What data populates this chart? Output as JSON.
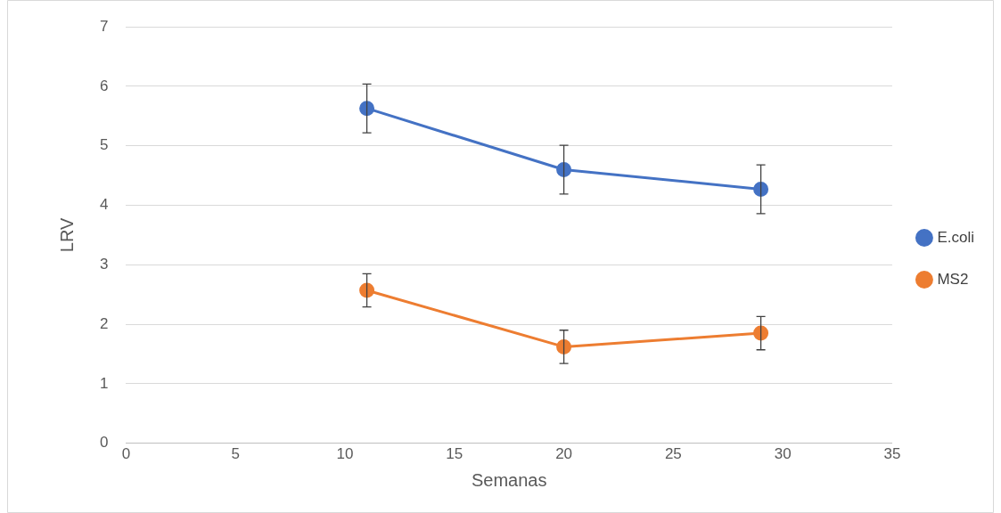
{
  "chart_data": {
    "type": "line",
    "xlabel": "Semanas",
    "ylabel": "LRV",
    "x": [
      11,
      20,
      29
    ],
    "series": [
      {
        "name": "E.coli",
        "color": "#4472c4",
        "values": [
          5.63,
          4.6,
          4.27
        ],
        "errors": [
          0.41,
          0.41,
          0.41
        ]
      },
      {
        "name": "MS2",
        "color": "#ed7d31",
        "values": [
          2.57,
          1.62,
          1.85
        ],
        "errors": [
          0.28,
          0.28,
          0.28
        ]
      }
    ],
    "xlim": [
      0,
      35
    ],
    "xticks": [
      0,
      5,
      10,
      15,
      20,
      25,
      30,
      35
    ],
    "ylim": [
      0,
      7
    ],
    "yticks": [
      0,
      1,
      2,
      3,
      4,
      5,
      6,
      7
    ],
    "grid": "y",
    "legend": "right",
    "marker": "circle",
    "line_style": "solid"
  }
}
